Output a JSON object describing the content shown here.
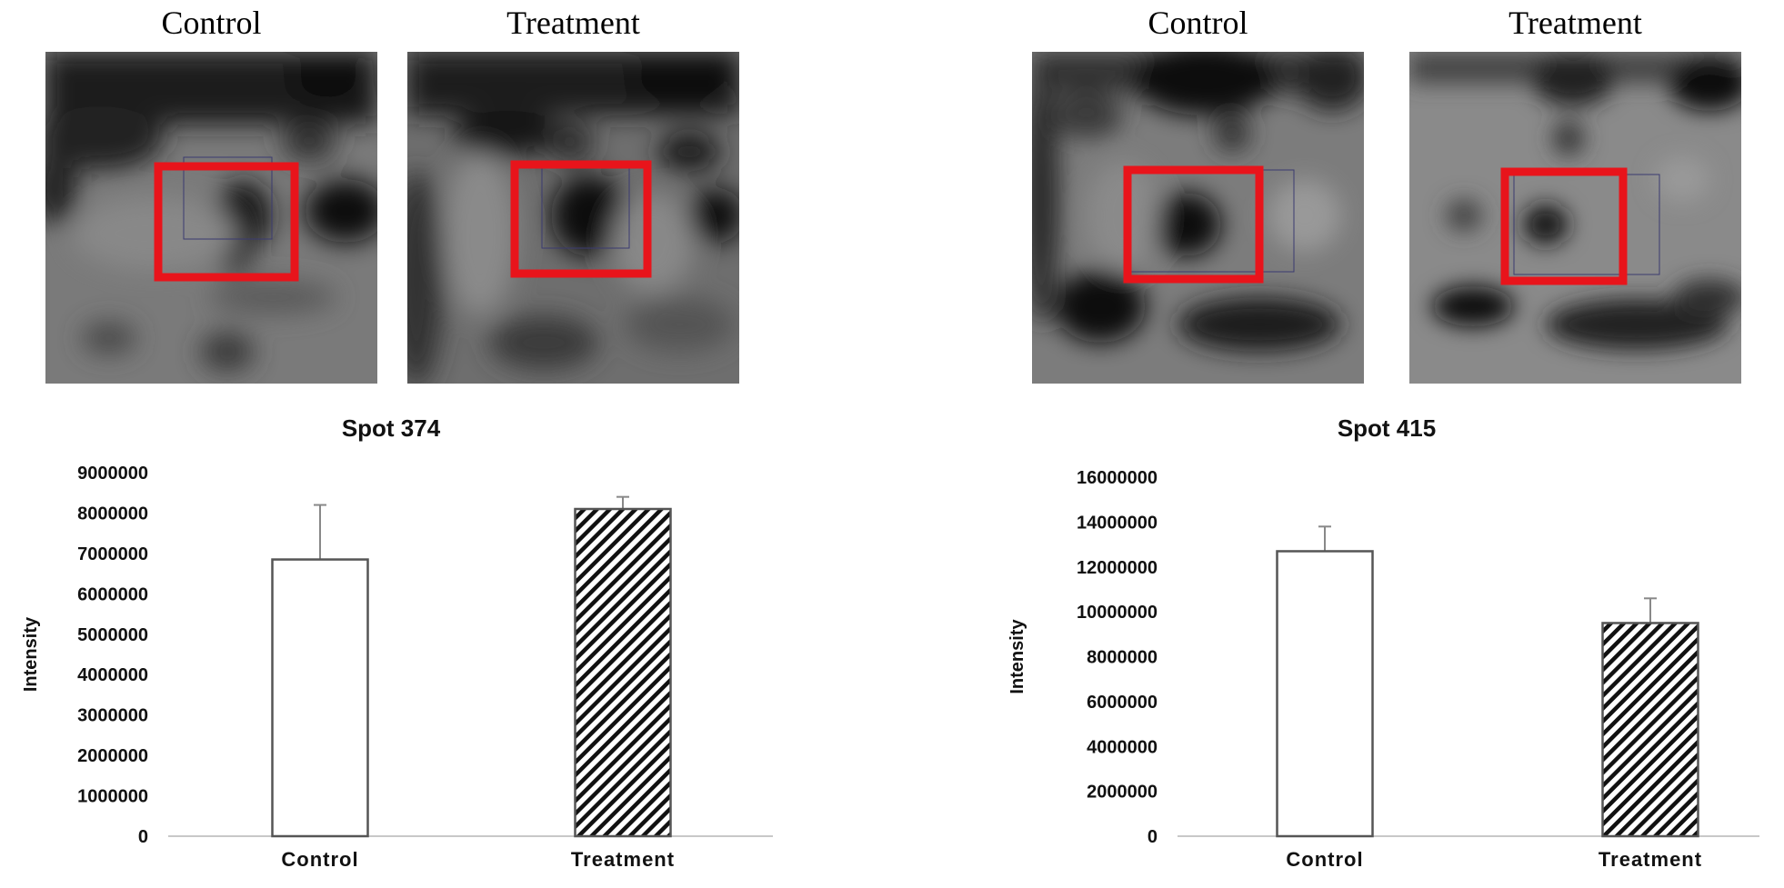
{
  "figure": {
    "panels": [
      {
        "image_labels": [
          "Control",
          "Treatment"
        ],
        "spot_title": "Spot 374"
      },
      {
        "image_labels": [
          "Control",
          "Treatment"
        ],
        "spot_title": "Spot 415"
      }
    ],
    "highlight_color": "#e8141b"
  },
  "chart_data": [
    {
      "type": "bar",
      "title": "Spot 374",
      "xlabel": "",
      "ylabel": "Intensity",
      "categories": [
        "Control",
        "Treatment"
      ],
      "values": [
        6850000,
        8100000
      ],
      "error": [
        1350000,
        300000
      ],
      "ylim": [
        0,
        9000000
      ],
      "yticks": [
        0,
        1000000,
        2000000,
        3000000,
        4000000,
        5000000,
        6000000,
        7000000,
        8000000,
        9000000
      ],
      "ytick_labels": [
        "0",
        "1000000",
        "2000000",
        "3000000",
        "4000000",
        "5000000",
        "6000000",
        "7000000",
        "8000000",
        "9000000"
      ],
      "bar_styles": [
        "white",
        "diagonal-hatch"
      ],
      "grid": false
    },
    {
      "type": "bar",
      "title": "Spot 415",
      "xlabel": "",
      "ylabel": "Intensity",
      "categories": [
        "Control",
        "Treatment"
      ],
      "values": [
        12700000,
        9500000
      ],
      "error": [
        1100000,
        1100000
      ],
      "ylim": [
        0,
        16000000
      ],
      "yticks": [
        0,
        2000000,
        4000000,
        6000000,
        8000000,
        10000000,
        12000000,
        14000000,
        16000000
      ],
      "ytick_labels": [
        "0",
        "2000000",
        "4000000",
        "6000000",
        "8000000",
        "10000000",
        "12000000",
        "14000000",
        "16000000"
      ],
      "bar_styles": [
        "white",
        "diagonal-hatch"
      ],
      "grid": false
    }
  ]
}
